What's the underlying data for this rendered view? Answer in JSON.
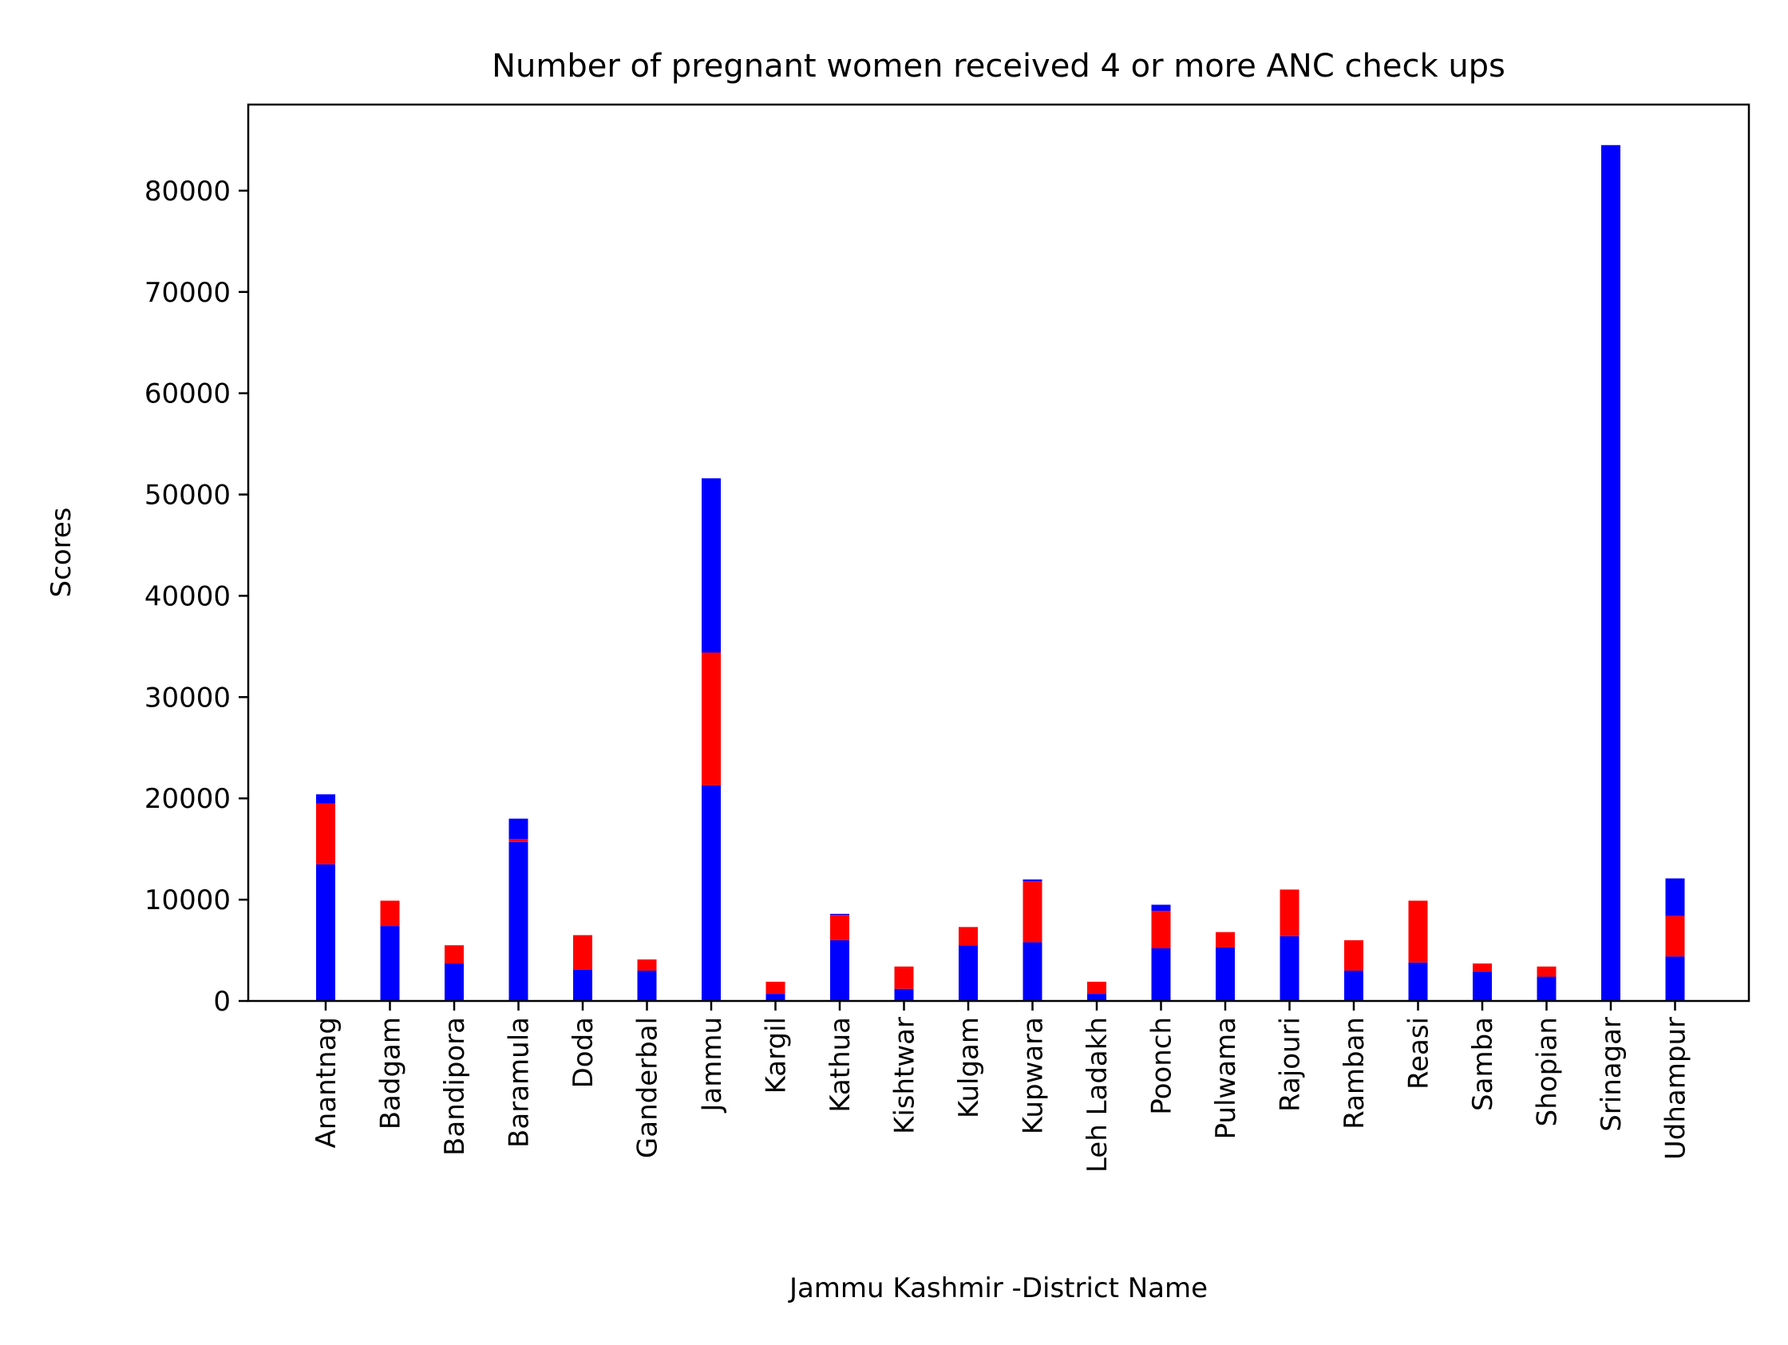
{
  "chart_data": {
    "type": "bar",
    "stacked": true,
    "title": "Number of pregnant women received 4 or more ANC check ups",
    "xlabel": "Jammu Kashmir -District Name",
    "ylabel": "Scores",
    "ylim": [
      0,
      88500
    ],
    "yticks": [
      0,
      10000,
      20000,
      30000,
      40000,
      50000,
      60000,
      70000,
      80000
    ],
    "grid": false,
    "categories": [
      "Anantnag",
      "Badgam",
      "Bandipora",
      "Baramula",
      "Doda",
      "Ganderbal",
      "Jammu",
      "Kargil",
      "Kathua",
      "Kishtwar",
      "Kulgam",
      "Kupwara",
      "Leh Ladakh",
      "Poonch",
      "Pulwama",
      "Rajouri",
      "Ramban",
      "Reasi",
      "Samba",
      "Shopian",
      "Srinagar",
      "Udhampur"
    ],
    "series": [
      {
        "color": "#0000ff",
        "values": [
          13500,
          7400,
          3700,
          15700,
          3100,
          3000,
          21300,
          700,
          6000,
          1200,
          5500,
          5800,
          700,
          5200,
          5300,
          6400,
          3000,
          3800,
          2900,
          2400,
          84500,
          4400
        ]
      },
      {
        "color": "#ff0000",
        "values": [
          6000,
          2500,
          1800,
          300,
          3400,
          1100,
          13100,
          1200,
          2500,
          2200,
          1800,
          6000,
          1200,
          3700,
          1500,
          4600,
          3000,
          6100,
          800,
          1000,
          0,
          4000
        ]
      },
      {
        "color": "#0000ff",
        "values": [
          900,
          0,
          0,
          2000,
          0,
          0,
          17200,
          0,
          100,
          0,
          0,
          200,
          0,
          600,
          0,
          0,
          0,
          0,
          0,
          0,
          0,
          3700
        ]
      }
    ]
  }
}
